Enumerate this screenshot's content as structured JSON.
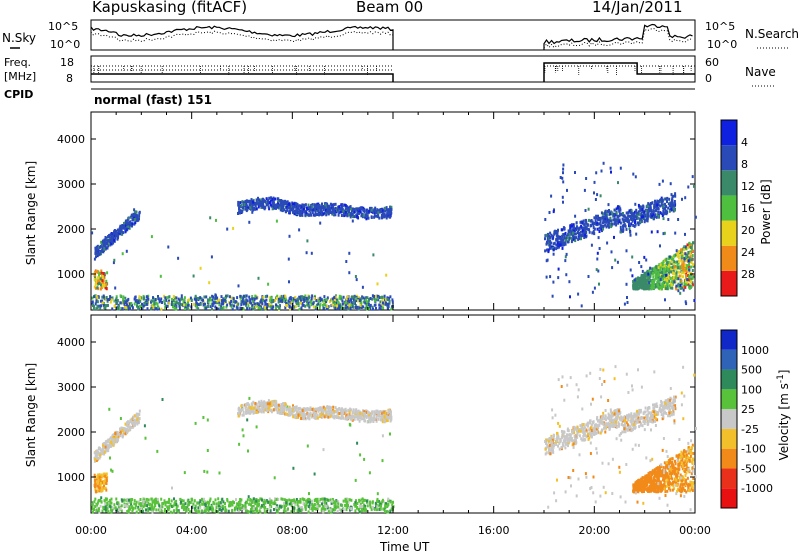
{
  "header": {
    "station": "Kapuskasing (fitACF)",
    "beam": "Beam 00",
    "date": "14/Jan/2011"
  },
  "noise_panel": {
    "left_label": "N.Sky",
    "right_label": "N.Search",
    "y_ticks": [
      "10^5",
      "10^0"
    ]
  },
  "freq_panel": {
    "left_label_1": "Freq.",
    "left_label_2": "[MHz]",
    "right_label": "Nave",
    "left_ticks": [
      "18",
      "8"
    ],
    "right_ticks": [
      "60",
      "0"
    ]
  },
  "cpid": {
    "label": "CPID",
    "mode_text": "normal (fast) 151"
  },
  "colors": {
    "scatter_blue": "#1a3cc8",
    "ground_green": "#3fa83f",
    "velocity_grey": "#c0c0c0"
  },
  "chart_data": [
    {
      "type": "heatmap",
      "name": "power",
      "ylabel": "Slant Range [km]",
      "ylim": [
        200,
        4600
      ],
      "y_ticks": [
        1000,
        2000,
        3000,
        4000
      ],
      "x_ticks": [
        "00:00",
        "04:00",
        "08:00",
        "12:00",
        "16:00",
        "20:00",
        "00:00"
      ],
      "xlim_hours": [
        0,
        24
      ],
      "data_gap_hours": [
        12,
        18
      ],
      "colorbar": {
        "label": "Power [dB]",
        "ticks": [
          "4",
          "8",
          "12",
          "16",
          "20",
          "24",
          "28"
        ],
        "colors": [
          "#1020e0",
          "#2a4ab8",
          "#3a8a6a",
          "#4fbf3f",
          "#e8d21c",
          "#f08b1a",
          "#e81a1a"
        ]
      }
    },
    {
      "type": "heatmap",
      "name": "velocity",
      "ylabel": "Slant Range [km]",
      "ylim": [
        200,
        4600
      ],
      "y_ticks": [
        1000,
        2000,
        3000,
        4000
      ],
      "x_ticks": [
        "00:00",
        "04:00",
        "08:00",
        "12:00",
        "16:00",
        "20:00",
        "00:00"
      ],
      "xlim_hours": [
        0,
        24
      ],
      "data_gap_hours": [
        12,
        18
      ],
      "xlabel": "Time UT",
      "colorbar": {
        "label": "Velocity [m s",
        "label_exp": "-1",
        "label_end": "]",
        "ticks": [
          "1000",
          "500",
          "100",
          "25",
          "-25",
          "-100",
          "-500",
          "-1000"
        ],
        "colors": [
          "#1028c8",
          "#2f63b8",
          "#2e8a5a",
          "#58c23a",
          "#c8c8c8",
          "#f2c02a",
          "#f28a1a",
          "#e8301a",
          "#e81010"
        ]
      }
    }
  ]
}
